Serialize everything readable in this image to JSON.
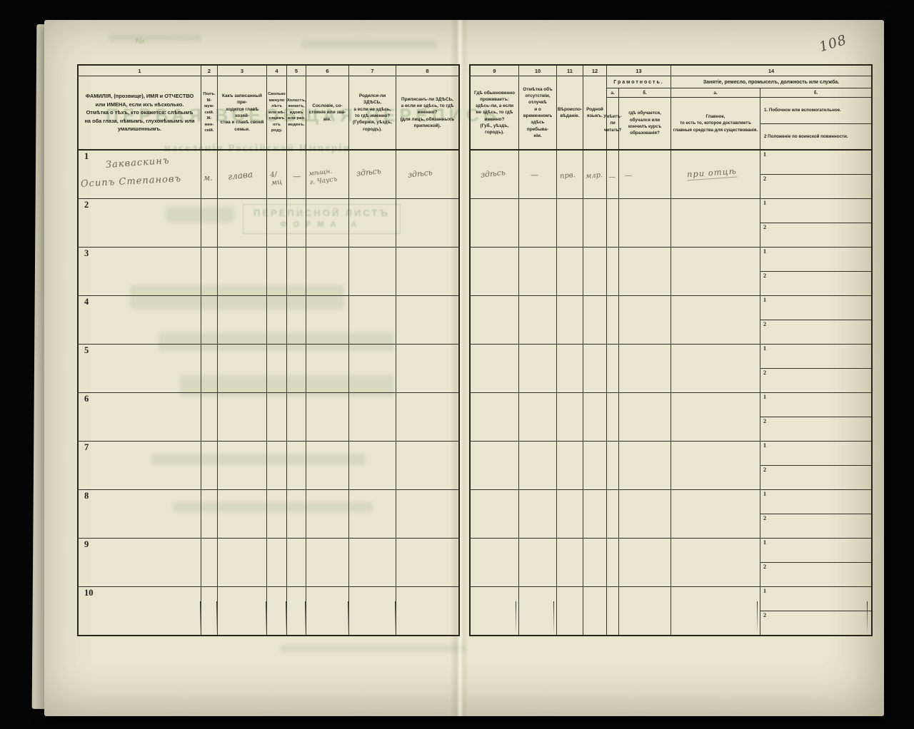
{
  "page": {
    "number": "108",
    "paper_color": "#e9e6cf",
    "ink_color": "#24231a",
    "handwriting_color": "#6e6550",
    "show_through_color": "#7a9c6a"
  },
  "show_through": {
    "title_caps": "ПЕРВАЯ ВСЕОБЩАЯ ПЕРЕПИСЬ",
    "subtitle": "населенія Россійской Имперіи",
    "sheet_label": "ПЕРЕПИСНОЙ ЛИСТЪ",
    "form_label": "ФОРМА А",
    "corner_mark": "№"
  },
  "table": {
    "sub_row_labels": [
      "1",
      "2"
    ],
    "rows": [
      "1",
      "2",
      "3",
      "4",
      "5",
      "6",
      "7",
      "8",
      "9",
      "10"
    ],
    "columns": [
      {
        "num": "1",
        "label": "ФАМИЛІЯ, (прозвище), ИМЯ и ОТЧЕСТВО или ИМЕНА, если ихъ нѣсколько.\nОтмѣтка о тѣхъ, кто окажется: слѣпымъ на оба глаза, нѣмымъ, глухонѣмымъ или умалишеннымъ."
      },
      {
        "num": "2",
        "label": "Полъ.\nМ-муж-\nскій.\nЖ-жен-\nскій."
      },
      {
        "num": "3",
        "label": "Какъ записанный при-\nходится главѣ хозяй-\nства и главѣ своей\nсемьи."
      },
      {
        "num": "4",
        "label": "Сколько\nминуло\nлѣтъ\nили мѣ-\nсяцевъ\nотъ роду."
      },
      {
        "num": "5",
        "label": "Холостъ,\nженатъ,\nвдовъ\nили раз-\nведенъ."
      },
      {
        "num": "6",
        "label": "Сословіе, со-\nстояніе или зва-\nніе."
      },
      {
        "num": "7",
        "label": "Родился-ли ЗДѢСЬ,\nа если не здѣсь,\nто гдѣ именно?\n(Губернія, уѣздъ, городъ)."
      },
      {
        "num": "8",
        "label": "Приписанъ-ли ЗДѢСЬ,\nа если не здѣсь, то гдѣ\nименно?\n(для лицъ, обязанныхъ\nприпиской)."
      },
      {
        "num": "9",
        "label": "Гдѣ обыкновенно\nпроживаетъ:\nздѣсь-ли, а если\nне здѣсь, то гдѣ\nименно?\n(Губ., уѣздъ, городъ)."
      },
      {
        "num": "10",
        "label": "Отмѣтка объ\nотсутствіи, отлучкѣ\nи о временномъ\nздѣсь пребыва-\nніи."
      },
      {
        "num": "11",
        "label": "Вѣроиспо-\nвѣданіе."
      },
      {
        "num": "12",
        "label": "Родной\nязыкъ."
      },
      {
        "num": "13",
        "label": "Грамотность.",
        "sub_a": "а.",
        "sub_b": "б.",
        "desc_a": "Умѣетъ-\nли\nчитать?",
        "desc_b": "гдѣ обучается,\nобучался или\nкончилъ курсъ\nобразованія?"
      },
      {
        "num": "14",
        "label": "Занятіе, ремесло, промыселъ, должность или служба.",
        "sub_a": "а.",
        "sub_b": "б.",
        "desc_a": "Главное,\nто есть то, которое доставляетъ\nглавныя средства для существованія.",
        "desc_b1": "1.  Побочное или вспомогательное.",
        "desc_b2": "2   Положеніе по воинской повинности."
      }
    ]
  },
  "entry": {
    "name_line1": "Закваскинъ",
    "name_line2": "Осипъ Степановъ",
    "sex": "м.",
    "relation": "глава",
    "age": "4/мц",
    "marital": "—",
    "estate_line1": "мѣщн.",
    "estate_line2": "г. Чаусъ",
    "born": "здѣсь",
    "registered": "здѣсь",
    "resides": "здѣсь",
    "absence": "—",
    "religion": "прв.",
    "language": "млр.",
    "literacy_a": "—",
    "literacy_b": "—",
    "occupation": "при отцѣ"
  }
}
